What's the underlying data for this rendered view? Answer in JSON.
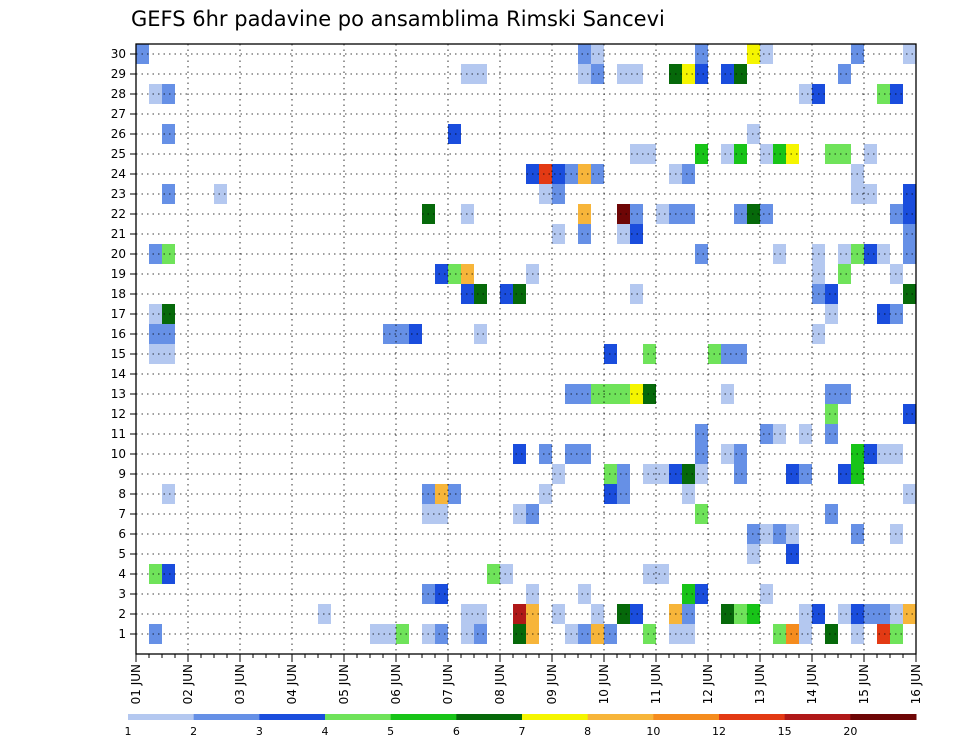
{
  "chart_data": {
    "type": "heatmap",
    "title": "GEFS 6hr padavine po ansamblima Rimski Sancevi",
    "members": [
      1,
      2,
      3,
      4,
      5,
      6,
      7,
      8,
      9,
      10,
      11,
      12,
      13,
      14,
      15,
      16,
      17,
      18,
      19,
      20,
      21,
      22,
      23,
      24,
      25,
      26,
      27,
      28,
      29,
      30
    ],
    "time_step_hours": 6,
    "steps": 60,
    "x_tick_labels": [
      "01 JUN",
      "02 JUN",
      "03 JUN",
      "04 JUN",
      "05 JUN",
      "06 JUN",
      "07 JUN",
      "08 JUN",
      "09 JUN",
      "10 JUN",
      "11 JUN",
      "12 JUN",
      "13 JUN",
      "14 JUN",
      "15 JUN",
      "16 JUN"
    ],
    "grid": true,
    "legend": {
      "placement": "bottom",
      "tick_labels": [
        "1",
        "2",
        "3",
        "4",
        "5",
        "6",
        "7",
        "8",
        "10",
        "12",
        "15",
        "20"
      ],
      "colors": [
        "#b4c8f0",
        "#6690e6",
        "#1a4ddd",
        "#6fe35a",
        "#18c418",
        "#06690a",
        "#f5f500",
        "#f7b53a",
        "#f58c1e",
        "#e33a14",
        "#b01818",
        "#6e0606"
      ]
    },
    "cells": [
      {
        "member": 30,
        "step": 0,
        "level": 2
      },
      {
        "member": 30,
        "step": 34,
        "level": 2
      },
      {
        "member": 30,
        "step": 35,
        "level": 1
      },
      {
        "member": 30,
        "step": 43,
        "level": 2
      },
      {
        "member": 30,
        "step": 47,
        "level": 7
      },
      {
        "member": 30,
        "step": 48,
        "level": 1
      },
      {
        "member": 30,
        "step": 55,
        "level": 2
      },
      {
        "member": 30,
        "step": 59,
        "level": 1
      },
      {
        "member": 29,
        "step": 25,
        "level": 1
      },
      {
        "member": 29,
        "step": 26,
        "level": 1
      },
      {
        "member": 29,
        "step": 34,
        "level": 1
      },
      {
        "member": 29,
        "step": 35,
        "level": 2
      },
      {
        "member": 29,
        "step": 37,
        "level": 1
      },
      {
        "member": 29,
        "step": 38,
        "level": 1
      },
      {
        "member": 29,
        "step": 41,
        "level": 6
      },
      {
        "member": 29,
        "step": 42,
        "level": 7
      },
      {
        "member": 29,
        "step": 43,
        "level": 3
      },
      {
        "member": 29,
        "step": 45,
        "level": 3
      },
      {
        "member": 29,
        "step": 46,
        "level": 6
      },
      {
        "member": 29,
        "step": 54,
        "level": 2
      },
      {
        "member": 28,
        "step": 1,
        "level": 1
      },
      {
        "member": 28,
        "step": 2,
        "level": 2
      },
      {
        "member": 28,
        "step": 51,
        "level": 1
      },
      {
        "member": 28,
        "step": 52,
        "level": 3
      },
      {
        "member": 28,
        "step": 57,
        "level": 4
      },
      {
        "member": 28,
        "step": 58,
        "level": 3
      },
      {
        "member": 26,
        "step": 2,
        "level": 2
      },
      {
        "member": 26,
        "step": 24,
        "level": 3
      },
      {
        "member": 26,
        "step": 47,
        "level": 1
      },
      {
        "member": 25,
        "step": 38,
        "level": 1
      },
      {
        "member": 25,
        "step": 39,
        "level": 1
      },
      {
        "member": 25,
        "step": 43,
        "level": 5
      },
      {
        "member": 25,
        "step": 45,
        "level": 1
      },
      {
        "member": 25,
        "step": 46,
        "level": 5
      },
      {
        "member": 25,
        "step": 48,
        "level": 1
      },
      {
        "member": 25,
        "step": 49,
        "level": 5
      },
      {
        "member": 25,
        "step": 50,
        "level": 7
      },
      {
        "member": 25,
        "step": 53,
        "level": 4
      },
      {
        "member": 25,
        "step": 54,
        "level": 4
      },
      {
        "member": 25,
        "step": 56,
        "level": 1
      },
      {
        "member": 24,
        "step": 30,
        "level": 3
      },
      {
        "member": 24,
        "step": 31,
        "level": 10
      },
      {
        "member": 24,
        "step": 32,
        "level": 3
      },
      {
        "member": 24,
        "step": 33,
        "level": 2
      },
      {
        "member": 24,
        "step": 34,
        "level": 8
      },
      {
        "member": 24,
        "step": 35,
        "level": 2
      },
      {
        "member": 24,
        "step": 41,
        "level": 1
      },
      {
        "member": 24,
        "step": 42,
        "level": 2
      },
      {
        "member": 24,
        "step": 55,
        "level": 1
      },
      {
        "member": 23,
        "step": 2,
        "level": 2
      },
      {
        "member": 23,
        "step": 6,
        "level": 1
      },
      {
        "member": 23,
        "step": 31,
        "level": 1
      },
      {
        "member": 23,
        "step": 32,
        "level": 2
      },
      {
        "member": 23,
        "step": 55,
        "level": 1
      },
      {
        "member": 23,
        "step": 56,
        "level": 1
      },
      {
        "member": 23,
        "step": 59,
        "level": 3
      },
      {
        "member": 22,
        "step": 22,
        "level": 6
      },
      {
        "member": 22,
        "step": 25,
        "level": 1
      },
      {
        "member": 22,
        "step": 34,
        "level": 8
      },
      {
        "member": 22,
        "step": 37,
        "level": 12
      },
      {
        "member": 22,
        "step": 38,
        "level": 2
      },
      {
        "member": 22,
        "step": 40,
        "level": 1
      },
      {
        "member": 22,
        "step": 41,
        "level": 2
      },
      {
        "member": 22,
        "step": 42,
        "level": 2
      },
      {
        "member": 22,
        "step": 46,
        "level": 2
      },
      {
        "member": 22,
        "step": 47,
        "level": 6
      },
      {
        "member": 22,
        "step": 48,
        "level": 2
      },
      {
        "member": 22,
        "step": 58,
        "level": 2
      },
      {
        "member": 22,
        "step": 59,
        "level": 3
      },
      {
        "member": 21,
        "step": 32,
        "level": 1
      },
      {
        "member": 21,
        "step": 34,
        "level": 2
      },
      {
        "member": 21,
        "step": 37,
        "level": 1
      },
      {
        "member": 21,
        "step": 38,
        "level": 3
      },
      {
        "member": 21,
        "step": 59,
        "level": 2
      },
      {
        "member": 20,
        "step": 1,
        "level": 2
      },
      {
        "member": 20,
        "step": 2,
        "level": 4
      },
      {
        "member": 20,
        "step": 43,
        "level": 2
      },
      {
        "member": 20,
        "step": 49,
        "level": 1
      },
      {
        "member": 20,
        "step": 52,
        "level": 1
      },
      {
        "member": 20,
        "step": 54,
        "level": 1
      },
      {
        "member": 20,
        "step": 55,
        "level": 4
      },
      {
        "member": 20,
        "step": 56,
        "level": 3
      },
      {
        "member": 20,
        "step": 57,
        "level": 1
      },
      {
        "member": 20,
        "step": 59,
        "level": 2
      },
      {
        "member": 19,
        "step": 23,
        "level": 3
      },
      {
        "member": 19,
        "step": 24,
        "level": 4
      },
      {
        "member": 19,
        "step": 25,
        "level": 8
      },
      {
        "member": 19,
        "step": 30,
        "level": 1
      },
      {
        "member": 19,
        "step": 52,
        "level": 1
      },
      {
        "member": 19,
        "step": 54,
        "level": 4
      },
      {
        "member": 19,
        "step": 58,
        "level": 1
      },
      {
        "member": 18,
        "step": 25,
        "level": 3
      },
      {
        "member": 18,
        "step": 26,
        "level": 6
      },
      {
        "member": 18,
        "step": 28,
        "level": 3
      },
      {
        "member": 18,
        "step": 29,
        "level": 6
      },
      {
        "member": 18,
        "step": 38,
        "level": 1
      },
      {
        "member": 18,
        "step": 52,
        "level": 2
      },
      {
        "member": 18,
        "step": 53,
        "level": 3
      },
      {
        "member": 18,
        "step": 59,
        "level": 6
      },
      {
        "member": 17,
        "step": 1,
        "level": 1
      },
      {
        "member": 17,
        "step": 2,
        "level": 6
      },
      {
        "member": 17,
        "step": 53,
        "level": 1
      },
      {
        "member": 17,
        "step": 57,
        "level": 3
      },
      {
        "member": 17,
        "step": 58,
        "level": 2
      },
      {
        "member": 16,
        "step": 1,
        "level": 2
      },
      {
        "member": 16,
        "step": 2,
        "level": 2
      },
      {
        "member": 16,
        "step": 19,
        "level": 2
      },
      {
        "member": 16,
        "step": 20,
        "level": 2
      },
      {
        "member": 16,
        "step": 21,
        "level": 3
      },
      {
        "member": 16,
        "step": 26,
        "level": 1
      },
      {
        "member": 16,
        "step": 52,
        "level": 1
      },
      {
        "member": 15,
        "step": 1,
        "level": 1
      },
      {
        "member": 15,
        "step": 2,
        "level": 1
      },
      {
        "member": 15,
        "step": 36,
        "level": 3
      },
      {
        "member": 15,
        "step": 39,
        "level": 4
      },
      {
        "member": 15,
        "step": 44,
        "level": 4
      },
      {
        "member": 15,
        "step": 45,
        "level": 2
      },
      {
        "member": 15,
        "step": 46,
        "level": 2
      },
      {
        "member": 13,
        "step": 33,
        "level": 2
      },
      {
        "member": 13,
        "step": 34,
        "level": 2
      },
      {
        "member": 13,
        "step": 35,
        "level": 4
      },
      {
        "member": 13,
        "step": 36,
        "level": 4
      },
      {
        "member": 13,
        "step": 37,
        "level": 4
      },
      {
        "member": 13,
        "step": 38,
        "level": 7
      },
      {
        "member": 13,
        "step": 39,
        "level": 6
      },
      {
        "member": 13,
        "step": 45,
        "level": 1
      },
      {
        "member": 13,
        "step": 53,
        "level": 2
      },
      {
        "member": 13,
        "step": 54,
        "level": 2
      },
      {
        "member": 12,
        "step": 53,
        "level": 4
      },
      {
        "member": 12,
        "step": 59,
        "level": 3
      },
      {
        "member": 11,
        "step": 43,
        "level": 2
      },
      {
        "member": 11,
        "step": 48,
        "level": 2
      },
      {
        "member": 11,
        "step": 49,
        "level": 1
      },
      {
        "member": 11,
        "step": 51,
        "level": 1
      },
      {
        "member": 11,
        "step": 53,
        "level": 2
      },
      {
        "member": 10,
        "step": 29,
        "level": 3
      },
      {
        "member": 10,
        "step": 31,
        "level": 2
      },
      {
        "member": 10,
        "step": 33,
        "level": 2
      },
      {
        "member": 10,
        "step": 34,
        "level": 2
      },
      {
        "member": 10,
        "step": 43,
        "level": 2
      },
      {
        "member": 10,
        "step": 45,
        "level": 1
      },
      {
        "member": 10,
        "step": 46,
        "level": 2
      },
      {
        "member": 10,
        "step": 55,
        "level": 5
      },
      {
        "member": 10,
        "step": 56,
        "level": 3
      },
      {
        "member": 10,
        "step": 57,
        "level": 1
      },
      {
        "member": 10,
        "step": 58,
        "level": 1
      },
      {
        "member": 9,
        "step": 32,
        "level": 1
      },
      {
        "member": 9,
        "step": 36,
        "level": 4
      },
      {
        "member": 9,
        "step": 37,
        "level": 2
      },
      {
        "member": 9,
        "step": 39,
        "level": 1
      },
      {
        "member": 9,
        "step": 40,
        "level": 1
      },
      {
        "member": 9,
        "step": 41,
        "level": 3
      },
      {
        "member": 9,
        "step": 42,
        "level": 6
      },
      {
        "member": 9,
        "step": 43,
        "level": 1
      },
      {
        "member": 9,
        "step": 46,
        "level": 2
      },
      {
        "member": 9,
        "step": 50,
        "level": 3
      },
      {
        "member": 9,
        "step": 51,
        "level": 2
      },
      {
        "member": 9,
        "step": 54,
        "level": 3
      },
      {
        "member": 9,
        "step": 55,
        "level": 5
      },
      {
        "member": 8,
        "step": 2,
        "level": 1
      },
      {
        "member": 8,
        "step": 22,
        "level": 2
      },
      {
        "member": 8,
        "step": 23,
        "level": 8
      },
      {
        "member": 8,
        "step": 24,
        "level": 2
      },
      {
        "member": 8,
        "step": 31,
        "level": 1
      },
      {
        "member": 8,
        "step": 36,
        "level": 3
      },
      {
        "member": 8,
        "step": 37,
        "level": 2
      },
      {
        "member": 8,
        "step": 42,
        "level": 1
      },
      {
        "member": 8,
        "step": 59,
        "level": 1
      },
      {
        "member": 7,
        "step": 22,
        "level": 1
      },
      {
        "member": 7,
        "step": 23,
        "level": 1
      },
      {
        "member": 7,
        "step": 29,
        "level": 1
      },
      {
        "member": 7,
        "step": 30,
        "level": 2
      },
      {
        "member": 7,
        "step": 43,
        "level": 4
      },
      {
        "member": 7,
        "step": 53,
        "level": 2
      },
      {
        "member": 6,
        "step": 47,
        "level": 2
      },
      {
        "member": 6,
        "step": 48,
        "level": 1
      },
      {
        "member": 6,
        "step": 49,
        "level": 2
      },
      {
        "member": 6,
        "step": 50,
        "level": 1
      },
      {
        "member": 6,
        "step": 55,
        "level": 2
      },
      {
        "member": 6,
        "step": 58,
        "level": 1
      },
      {
        "member": 5,
        "step": 47,
        "level": 1
      },
      {
        "member": 5,
        "step": 50,
        "level": 3
      },
      {
        "member": 4,
        "step": 1,
        "level": 4
      },
      {
        "member": 4,
        "step": 2,
        "level": 3
      },
      {
        "member": 4,
        "step": 27,
        "level": 4
      },
      {
        "member": 4,
        "step": 28,
        "level": 1
      },
      {
        "member": 4,
        "step": 39,
        "level": 1
      },
      {
        "member": 4,
        "step": 40,
        "level": 1
      },
      {
        "member": 3,
        "step": 22,
        "level": 2
      },
      {
        "member": 3,
        "step": 23,
        "level": 3
      },
      {
        "member": 3,
        "step": 30,
        "level": 1
      },
      {
        "member": 3,
        "step": 34,
        "level": 1
      },
      {
        "member": 3,
        "step": 42,
        "level": 5
      },
      {
        "member": 3,
        "step": 43,
        "level": 3
      },
      {
        "member": 3,
        "step": 48,
        "level": 1
      },
      {
        "member": 2,
        "step": 14,
        "level": 1
      },
      {
        "member": 2,
        "step": 25,
        "level": 1
      },
      {
        "member": 2,
        "step": 26,
        "level": 1
      },
      {
        "member": 2,
        "step": 29,
        "level": 11
      },
      {
        "member": 2,
        "step": 30,
        "level": 8
      },
      {
        "member": 2,
        "step": 32,
        "level": 1
      },
      {
        "member": 2,
        "step": 35,
        "level": 1
      },
      {
        "member": 2,
        "step": 37,
        "level": 6
      },
      {
        "member": 2,
        "step": 38,
        "level": 3
      },
      {
        "member": 2,
        "step": 41,
        "level": 8
      },
      {
        "member": 2,
        "step": 42,
        "level": 2
      },
      {
        "member": 2,
        "step": 45,
        "level": 6
      },
      {
        "member": 2,
        "step": 46,
        "level": 4
      },
      {
        "member": 2,
        "step": 47,
        "level": 5
      },
      {
        "member": 2,
        "step": 51,
        "level": 1
      },
      {
        "member": 2,
        "step": 52,
        "level": 3
      },
      {
        "member": 2,
        "step": 54,
        "level": 1
      },
      {
        "member": 2,
        "step": 55,
        "level": 3
      },
      {
        "member": 2,
        "step": 56,
        "level": 2
      },
      {
        "member": 2,
        "step": 57,
        "level": 2
      },
      {
        "member": 2,
        "step": 58,
        "level": 1
      },
      {
        "member": 2,
        "step": 59,
        "level": 8
      },
      {
        "member": 1,
        "step": 1,
        "level": 2
      },
      {
        "member": 1,
        "step": 18,
        "level": 1
      },
      {
        "member": 1,
        "step": 19,
        "level": 1
      },
      {
        "member": 1,
        "step": 20,
        "level": 4
      },
      {
        "member": 1,
        "step": 22,
        "level": 1
      },
      {
        "member": 1,
        "step": 23,
        "level": 2
      },
      {
        "member": 1,
        "step": 25,
        "level": 1
      },
      {
        "member": 1,
        "step": 26,
        "level": 2
      },
      {
        "member": 1,
        "step": 29,
        "level": 6
      },
      {
        "member": 1,
        "step": 30,
        "level": 8
      },
      {
        "member": 1,
        "step": 33,
        "level": 1
      },
      {
        "member": 1,
        "step": 34,
        "level": 2
      },
      {
        "member": 1,
        "step": 35,
        "level": 8
      },
      {
        "member": 1,
        "step": 36,
        "level": 2
      },
      {
        "member": 1,
        "step": 39,
        "level": 4
      },
      {
        "member": 1,
        "step": 41,
        "level": 1
      },
      {
        "member": 1,
        "step": 42,
        "level": 1
      },
      {
        "member": 1,
        "step": 49,
        "level": 4
      },
      {
        "member": 1,
        "step": 50,
        "level": 9
      },
      {
        "member": 1,
        "step": 51,
        "level": 1
      },
      {
        "member": 1,
        "step": 53,
        "level": 6
      },
      {
        "member": 1,
        "step": 55,
        "level": 1
      },
      {
        "member": 1,
        "step": 57,
        "level": 10
      },
      {
        "member": 1,
        "step": 58,
        "level": 4
      }
    ]
  }
}
